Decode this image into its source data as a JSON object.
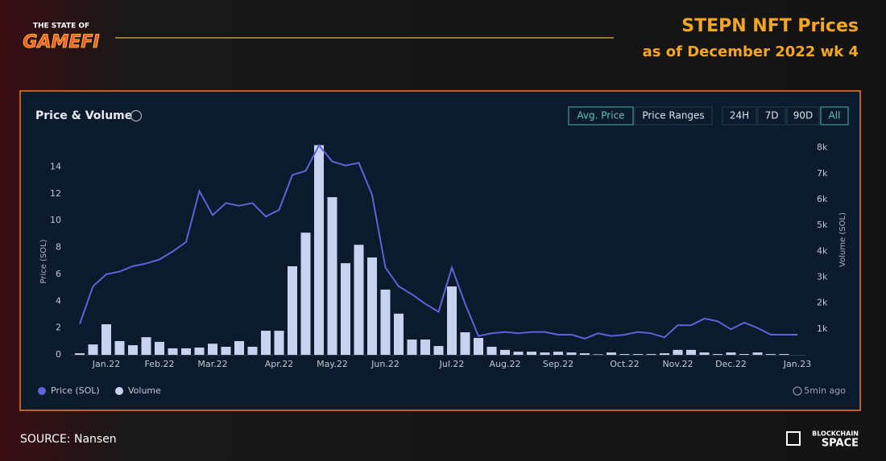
{
  "header": {
    "logo_top": "THE STATE OF",
    "logo_main": "GAMEFI",
    "title": "STEPN NFT Prices",
    "subtitle": "as of December 2022 wk 4"
  },
  "controls": {
    "metric": [
      "Avg. Price",
      "Price Ranges"
    ],
    "range": [
      "24H",
      "7D",
      "90D",
      "All"
    ]
  },
  "chart_data": {
    "type": "combo",
    "title": "Price & Volume",
    "ylabel": "Price (SOL)",
    "y2label": "Volume (SOL)",
    "categories": [
      null,
      null,
      "Jan.22",
      null,
      null,
      null,
      "Feb.22",
      null,
      null,
      null,
      "Mar.22",
      null,
      null,
      null,
      null,
      "Apr.22",
      null,
      null,
      null,
      "May.22",
      null,
      null,
      null,
      "Jun.22",
      null,
      null,
      null,
      null,
      "Jul.22",
      null,
      null,
      null,
      "Aug.22",
      null,
      null,
      null,
      "Sep.22",
      null,
      null,
      null,
      null,
      "Oct.22",
      null,
      null,
      null,
      "Nov.22",
      null,
      null,
      null,
      "Dec.22",
      null,
      null,
      null,
      null,
      "Jan.23"
    ],
    "series": [
      {
        "name": "Price (SOL)",
        "type": "line",
        "color": "#5c64d8",
        "values": [
          2.3,
          5.1,
          6.0,
          6.2,
          6.6,
          6.8,
          7.1,
          7.7,
          8.4,
          12.2,
          10.4,
          11.3,
          11.1,
          11.3,
          10.3,
          10.8,
          13.4,
          13.7,
          15.6,
          14.4,
          14.1,
          14.3,
          11.9,
          6.5,
          5.1,
          4.5,
          3.8,
          3.2,
          6.5,
          3.8,
          1.4,
          1.6,
          1.7,
          1.6,
          1.7,
          1.7,
          1.5,
          1.5,
          1.2,
          1.6,
          1.4,
          1.5,
          1.7,
          1.6,
          1.3,
          2.2,
          2.2,
          2.7,
          2.5,
          1.9,
          2.4,
          2.0,
          1.5,
          1.5,
          1.5
        ]
      },
      {
        "name": "Volume",
        "type": "bar",
        "axis": "y2",
        "color": "#c8d1ee",
        "values": [
          60,
          400,
          1180,
          530,
          370,
          680,
          500,
          250,
          250,
          280,
          430,
          310,
          530,
          310,
          930,
          930,
          3420,
          4720,
          8100,
          6090,
          3540,
          4250,
          3760,
          2520,
          1590,
          590,
          590,
          340,
          2640,
          870,
          650,
          310,
          190,
          120,
          120,
          90,
          120,
          90,
          60,
          20,
          90,
          30,
          30,
          30,
          60,
          190,
          190,
          90,
          30,
          90,
          30,
          90,
          30,
          30,
          null
        ]
      }
    ],
    "ylim": [
      0,
      16
    ],
    "yticks": [
      0,
      2,
      4,
      6,
      8,
      10,
      12,
      14
    ],
    "y2lim": [
      0,
      8300
    ],
    "y2ticks": [
      {
        "value": 1000,
        "label": "1k"
      },
      {
        "value": 2000,
        "label": "2k"
      },
      {
        "value": 3000,
        "label": "3k"
      },
      {
        "value": 4000,
        "label": "4k"
      },
      {
        "value": 5000,
        "label": "5k"
      },
      {
        "value": 6000,
        "label": "6k"
      },
      {
        "value": 7000,
        "label": "7k"
      },
      {
        "value": 8000,
        "label": "8k"
      }
    ],
    "updated": "5min ago"
  },
  "footer": {
    "source": "SOURCE: Nansen",
    "brand_top": "BLOCKCHAIN",
    "brand_main": "SPACE"
  }
}
